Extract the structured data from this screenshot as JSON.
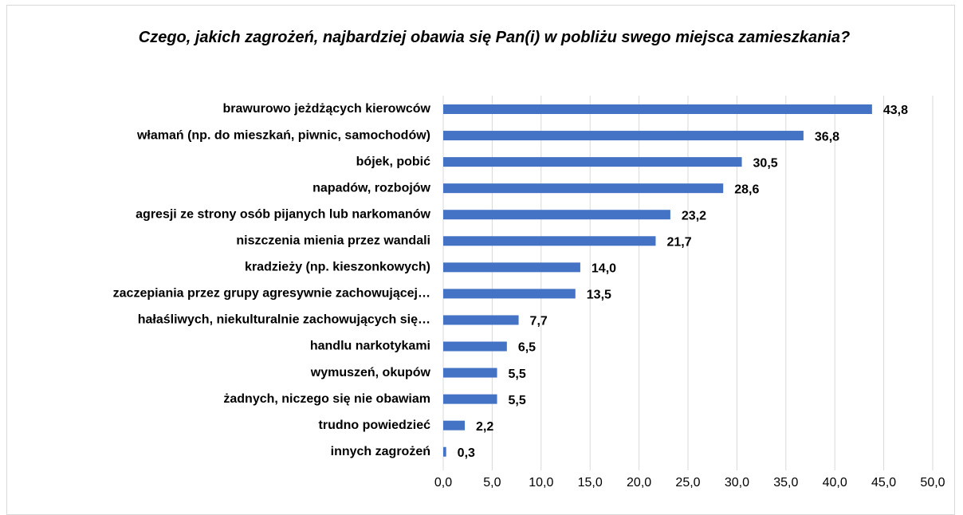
{
  "chart_data": {
    "type": "bar",
    "orientation": "horizontal",
    "title": "Czego, jakich zagrożeń, najbardziej obawia się Pan(i) w pobliżu swego miejsca zamieszkania?",
    "categories": [
      "brawurowo jeżdżących kierowców",
      "włamań (np. do mieszkań, piwnic, samochodów)",
      "bójek, pobić",
      "napadów, rozbojów",
      "agresji ze strony osób pijanych lub narkomanów",
      "niszczenia mienia przez wandali",
      "kradzieży (np. kieszonkowych)",
      "zaczepiania przez grupy agresywnie zachowującej…",
      "hałaśliwych, niekulturalnie zachowujących się…",
      "handlu narkotykami",
      "wymuszeń, okupów",
      "żadnych, niczego się nie obawiam",
      "trudno powiedzieć",
      "innych zagrożeń"
    ],
    "values": [
      43.8,
      36.8,
      30.5,
      28.6,
      23.2,
      21.7,
      14.0,
      13.5,
      7.7,
      6.5,
      5.5,
      5.5,
      2.2,
      0.3
    ],
    "value_labels": [
      "43,8",
      "36,8",
      "30,5",
      "28,6",
      "23,2",
      "21,7",
      "14,0",
      "13,5",
      "7,7",
      "6,5",
      "5,5",
      "5,5",
      "2,2",
      "0,3"
    ],
    "color": "#4472c4",
    "xlim": [
      0,
      50
    ],
    "xticks": [
      {
        "value": 0,
        "label": "0,0"
      },
      {
        "value": 5,
        "label": "5,0"
      },
      {
        "value": 10,
        "label": "10,0"
      },
      {
        "value": 15,
        "label": "15,0"
      },
      {
        "value": 20,
        "label": "20,0"
      },
      {
        "value": 25,
        "label": "25,0"
      },
      {
        "value": 30,
        "label": "30,0"
      },
      {
        "value": 35,
        "label": "35,0"
      },
      {
        "value": 40,
        "label": "40,0"
      },
      {
        "value": 45,
        "label": "45,0"
      },
      {
        "value": 50,
        "label": "50,0"
      }
    ],
    "grid": true
  }
}
